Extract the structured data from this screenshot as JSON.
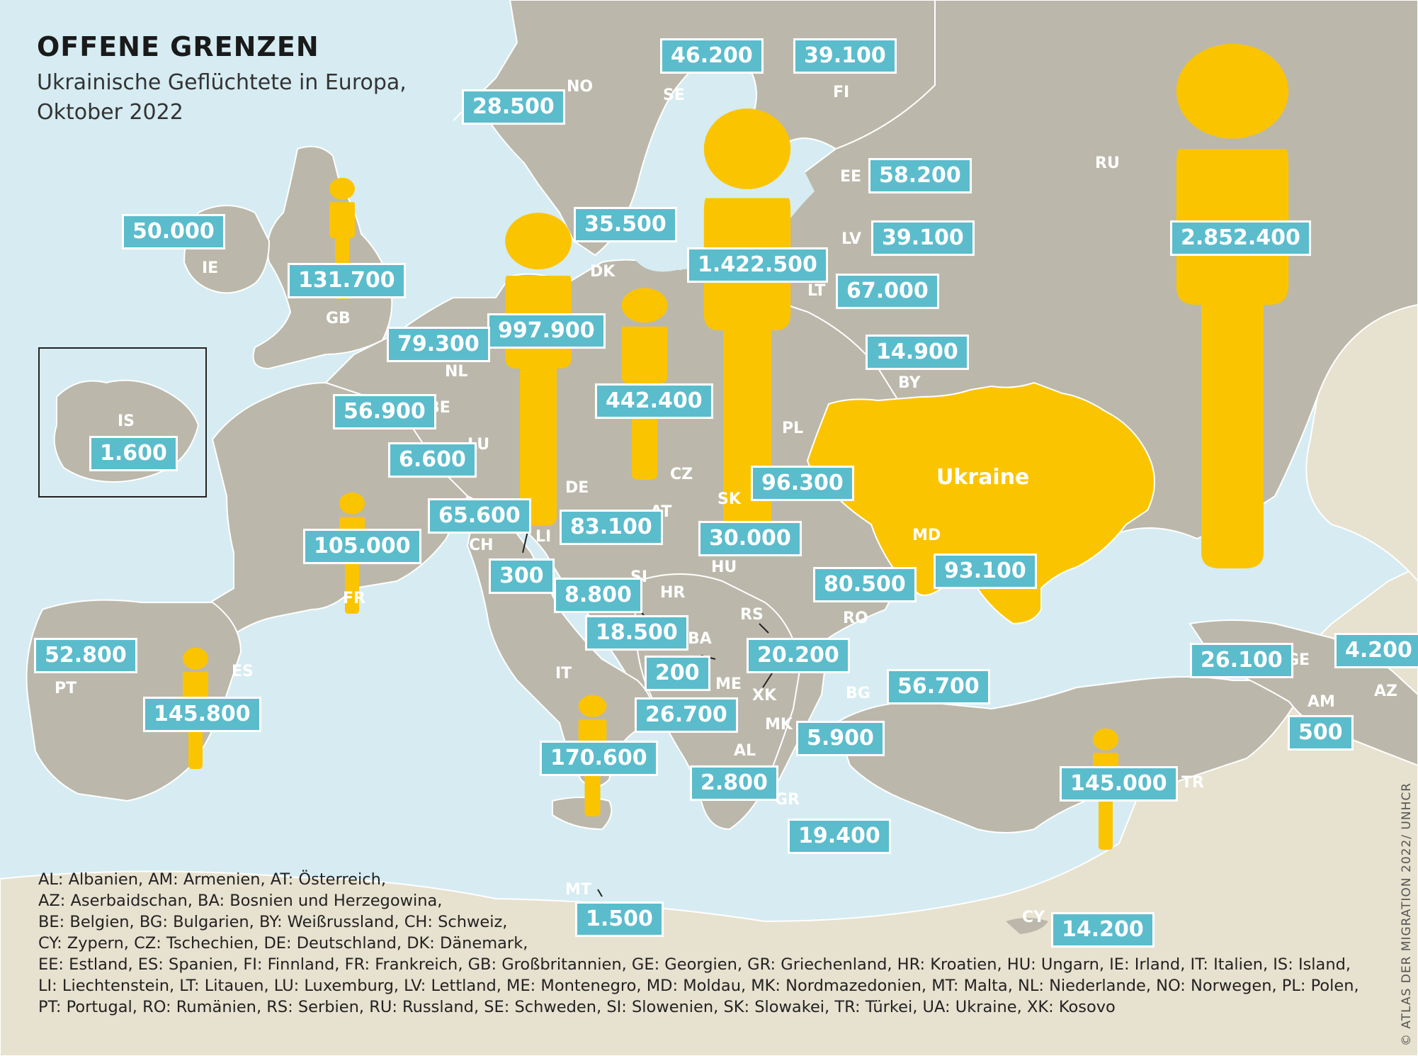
{
  "title": "OFFENE GRENZEN",
  "subtitle_line1": "Ukrainische Geflüchtete in Europa,",
  "subtitle_line2": "Oktober 2022",
  "highlight_label": "Ukraine",
  "credit": "© ATLAS DER MIGRATION 2022/ UNHCR",
  "colors": {
    "sea": "#d6ecf2",
    "land": "#bbb8ab",
    "outer_land": "#e7e1cf",
    "ukraine": "#fbc400",
    "figure": "#fbc400",
    "label_box": "#5bbccc"
  },
  "countries": [
    {
      "code": "NO",
      "value": "28.500",
      "figure_size": null
    },
    {
      "code": "SE",
      "value": "46.200",
      "figure_size": null
    },
    {
      "code": "FI",
      "value": "39.100",
      "figure_size": null
    },
    {
      "code": "RU",
      "value": "2.852.400",
      "figure_size": "xl"
    },
    {
      "code": "EE",
      "value": "58.200",
      "figure_size": null
    },
    {
      "code": "LV",
      "value": "39.100",
      "figure_size": null
    },
    {
      "code": "LT",
      "value": "67.000",
      "figure_size": null
    },
    {
      "code": "DK",
      "value": "35.500",
      "figure_size": null
    },
    {
      "code": "IE",
      "value": "50.000",
      "figure_size": null
    },
    {
      "code": "GB",
      "value": "131.700",
      "figure_size": "s"
    },
    {
      "code": "PL",
      "value": "1.422.500",
      "figure_size": "l"
    },
    {
      "code": "DE",
      "value": "997.900",
      "figure_size": "l"
    },
    {
      "code": "CZ",
      "value": "442.400",
      "figure_size": "m"
    },
    {
      "code": "NL",
      "value": "79.300",
      "figure_size": null
    },
    {
      "code": "BY",
      "value": "14.900",
      "figure_size": null
    },
    {
      "code": "BE",
      "value": "56.900",
      "figure_size": null
    },
    {
      "code": "IS",
      "value": "1.600",
      "figure_size": null
    },
    {
      "code": "LU",
      "value": "6.600",
      "figure_size": null
    },
    {
      "code": "SK",
      "value": "96.300",
      "figure_size": null
    },
    {
      "code": "CH",
      "value": "65.600",
      "figure_size": null
    },
    {
      "code": "AT",
      "value": "83.100",
      "figure_size": null
    },
    {
      "code": "HU",
      "value": "30.000",
      "figure_size": null
    },
    {
      "code": "FR",
      "value": "105.000",
      "figure_size": "s"
    },
    {
      "code": "LI",
      "value": "300",
      "figure_size": null
    },
    {
      "code": "MD",
      "value": "93.100",
      "figure_size": null
    },
    {
      "code": "SI",
      "value": "8.800",
      "figure_size": null
    },
    {
      "code": "RO",
      "value": "80.500",
      "figure_size": null
    },
    {
      "code": "HR",
      "value": "18.500",
      "figure_size": null
    },
    {
      "code": "PT",
      "value": "52.800",
      "figure_size": null
    },
    {
      "code": "RS",
      "value": "20.200",
      "figure_size": null
    },
    {
      "code": "BA",
      "value": "200",
      "figure_size": null
    },
    {
      "code": "GE",
      "value": "26.100",
      "figure_size": null
    },
    {
      "code": "AZ",
      "value": "4.200",
      "figure_size": null
    },
    {
      "code": "BG",
      "value": "56.700",
      "figure_size": null
    },
    {
      "code": "ES",
      "value": "145.800",
      "figure_size": "s"
    },
    {
      "code": "ME",
      "value": "26.700",
      "figure_size": null
    },
    {
      "code": "XK",
      "value": "",
      "figure_size": null
    },
    {
      "code": "AM",
      "value": "500",
      "figure_size": null
    },
    {
      "code": "IT",
      "value": "170.600",
      "figure_size": "s"
    },
    {
      "code": "MK",
      "value": "5.900",
      "figure_size": null
    },
    {
      "code": "AL",
      "value": "2.800",
      "figure_size": null
    },
    {
      "code": "TR",
      "value": "145.000",
      "figure_size": "s"
    },
    {
      "code": "GR",
      "value": "19.400",
      "figure_size": null
    },
    {
      "code": "MT",
      "value": "1.500",
      "figure_size": null
    },
    {
      "code": "CY",
      "value": "14.200",
      "figure_size": null
    }
  ],
  "legend": [
    "AL: Albanien, AM: Armenien, AT: Österreich,",
    "AZ: Aserbaidschan, BA: Bosnien und Herzegowina,",
    "BE: Belgien, BG: Bulgarien, BY: Weißrussland, CH: Schweiz,",
    "CY: Zypern, CZ: Tschechien, DE: Deutschland, DK: Dänemark,",
    "EE: Estland, ES: Spanien, FI: Finnland, FR: Frankreich, GB: Großbritannien, GE: Georgien, GR: Griechenland, HR: Kroatien, HU: Ungarn, IE: Irland, IT: Italien, IS: Island,",
    "LI: Liechtenstein, LT: Litauen, LU: Luxemburg, LV: Lettland, ME: Montenegro, MD: Moldau, MK: Nordmazedonien, MT: Malta, NL: Niederlande, NO: Norwegen, PL: Polen,",
    "PT: Portugal, RO: Rumänien, RS: Serbien, RU: Russland, SE: Schweden, SI: Slowenien, SK: Slowakei, TR: Türkei, UA: Ukraine, XK: Kosovo"
  ]
}
